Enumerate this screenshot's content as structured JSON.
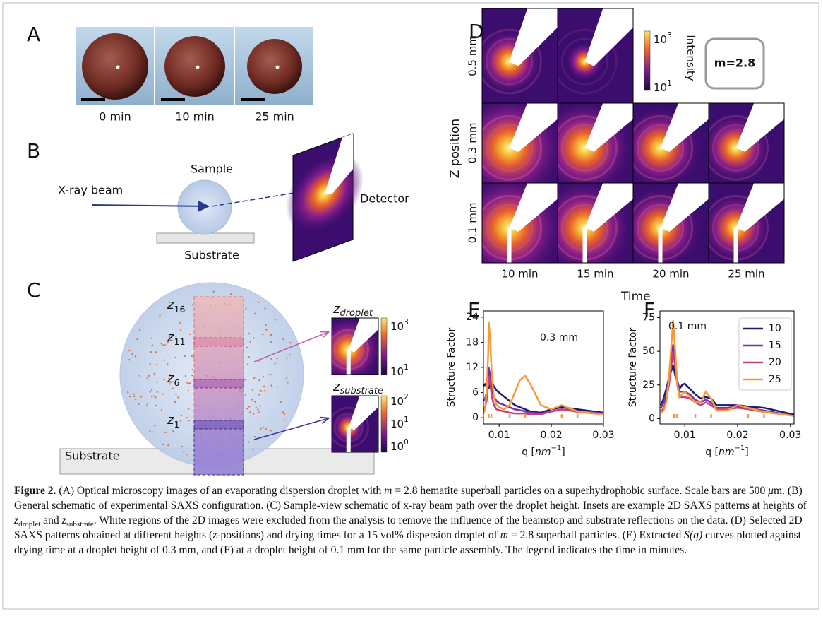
{
  "panel_labels": [
    "A",
    "B",
    "C",
    "D",
    "E",
    "F"
  ],
  "panel_a": {
    "captions": [
      "0 min",
      "10 min",
      "25 min"
    ]
  },
  "panel_b": {
    "sample": "Sample",
    "beam": "X-ray beam",
    "detector": "Detector",
    "substrate": "Substrate"
  },
  "panel_c": {
    "heights": [
      {
        "base": "z",
        "sub": "16"
      },
      {
        "base": "z",
        "sub": "11"
      },
      {
        "base": "z",
        "sub": "6"
      },
      {
        "base": "z",
        "sub": "1"
      }
    ],
    "substrate": "Substrate",
    "insets": [
      {
        "title": {
          "base": "z",
          "sub": "droplet"
        },
        "colorbar_ticks": [
          {
            "base": "10",
            "exp": "3"
          },
          {
            "base": "10",
            "exp": "1"
          }
        ]
      },
      {
        "title": {
          "base": "z",
          "sub": "substrate"
        },
        "colorbar_ticks": [
          {
            "base": "10",
            "exp": "2"
          },
          {
            "base": "10",
            "exp": "1"
          },
          {
            "base": "10",
            "exp": "0"
          }
        ]
      }
    ]
  },
  "panel_d": {
    "rows": [
      "0.5 mm",
      "0.3 mm",
      "0.1 mm"
    ],
    "columns": [
      "10 min",
      "15 min",
      "20 min",
      "25 min"
    ],
    "y_label": "Z position",
    "x_label": "Time",
    "colorbar_label": "Intensity",
    "colorbar_ticks": [
      {
        "base": "10",
        "exp": "3"
      },
      {
        "base": "10",
        "exp": "1"
      }
    ],
    "annotation": "m=2.8"
  },
  "chart_data": [
    {
      "type": "line",
      "ylabel": "Structure Factor",
      "xlabel_parts": [
        "q [",
        "nm",
        "−1",
        "]"
      ],
      "annotation": "0.3 mm",
      "xlim": [
        0.007,
        0.03
      ],
      "ylim": [
        -1.5,
        25.5
      ],
      "xticks": [
        0.01,
        0.02,
        0.03
      ],
      "yticks": [
        0,
        6,
        12,
        18,
        24
      ],
      "x": [
        0.007,
        0.0073,
        0.0076,
        0.0079,
        0.008,
        0.0083,
        0.0086,
        0.009,
        0.0095,
        0.01,
        0.011,
        0.012,
        0.013,
        0.014,
        0.015,
        0.016,
        0.018,
        0.02,
        0.022,
        0.025,
        0.03
      ],
      "series": [
        {
          "color": "#1b1b6f",
          "values": [
            7.5,
            8,
            7.5,
            7,
            7,
            8,
            8.5,
            7.5,
            6.5,
            6,
            5,
            4,
            3,
            2.5,
            2,
            1.5,
            1.2,
            2,
            2.5,
            2,
            1.2
          ]
        },
        {
          "color": "#7d2fa3",
          "values": [
            4,
            4.5,
            6,
            9,
            12,
            10,
            7,
            5,
            4,
            3.5,
            3,
            2.5,
            2,
            1.8,
            1.5,
            1.2,
            1,
            1.5,
            2,
            1.6,
            1
          ]
        },
        {
          "color": "#c2407a",
          "values": [
            2,
            2.5,
            4,
            8,
            10,
            8,
            5,
            3,
            2,
            1.8,
            1.5,
            1.2,
            1,
            1,
            1,
            0.8,
            0.8,
            1.5,
            2,
            1.4,
            0.8
          ]
        },
        {
          "color": "#f59a3a",
          "values": [
            1,
            2,
            6,
            15,
            23,
            18,
            10,
            5,
            3,
            2.5,
            2,
            3,
            6,
            9,
            10,
            8,
            3,
            2,
            3,
            1.5,
            0.8
          ]
        }
      ],
      "peak_markers": [
        0.008,
        0.0085,
        0.012,
        0.015,
        0.022,
        0.025
      ]
    },
    {
      "type": "line",
      "ylabel": "Structure Factor",
      "xlabel_parts": [
        "q [",
        "nm",
        "−1",
        "]"
      ],
      "annotation": "0.1 mm",
      "legend": "upper right",
      "xlim": [
        0.0053,
        0.0307
      ],
      "ylim": [
        -4,
        80
      ],
      "xticks": [
        0.01,
        0.02,
        0.03
      ],
      "yticks": [
        0,
        25,
        50,
        75
      ],
      "x": [
        0.0055,
        0.006,
        0.0065,
        0.007,
        0.0078,
        0.0082,
        0.0086,
        0.009,
        0.0095,
        0.01,
        0.011,
        0.012,
        0.013,
        0.014,
        0.015,
        0.016,
        0.018,
        0.02,
        0.022,
        0.025,
        0.0307
      ],
      "series": [
        {
          "name": "10",
          "color": "#1b1b6f",
          "values": [
            10,
            15,
            22,
            30,
            40,
            32,
            28,
            22,
            25,
            26,
            22,
            18,
            15,
            16,
            15,
            10,
            10,
            10,
            9,
            8,
            3
          ]
        },
        {
          "name": "15",
          "color": "#7d2fa3",
          "values": [
            8,
            12,
            18,
            30,
            55,
            40,
            28,
            20,
            20,
            20,
            18,
            14,
            12,
            14,
            12,
            8,
            8,
            9,
            8,
            6,
            2
          ]
        },
        {
          "name": "20",
          "color": "#c2407a",
          "values": [
            5,
            8,
            14,
            25,
            50,
            38,
            25,
            16,
            16,
            16,
            15,
            12,
            10,
            12,
            10,
            7,
            7,
            8,
            7,
            5,
            2
          ]
        },
        {
          "name": "25",
          "color": "#f59a3a",
          "values": [
            4,
            6,
            12,
            30,
            73,
            50,
            25,
            16,
            18,
            20,
            16,
            12,
            12,
            20,
            15,
            6,
            6,
            10,
            8,
            5,
            2
          ]
        }
      ],
      "peak_markers": [
        0.008,
        0.0085,
        0.012,
        0.015,
        0.022,
        0.025
      ]
    }
  ],
  "caption": {
    "segments": [
      {
        "text": "Figure 2.",
        "style": "bold"
      },
      {
        "text": " (A) Optical microscopy images of an evaporating dispersion droplet with "
      },
      {
        "text": "m",
        "style": "italic"
      },
      {
        "text": " = 2.8 hematite superball particles on a superhydrophobic surface. Scale bars are 500 "
      },
      {
        "text": "μ",
        "style": "italic"
      },
      {
        "text": "m. (B) General schematic of experimental SAXS configuration. (C) Sample-view schematic of x-ray beam path over the droplet height. Insets are example 2D SAXS patterns at heights of "
      },
      {
        "text": "z",
        "style": "italic"
      },
      {
        "text": "droplet",
        "style": "sub"
      },
      {
        "text": " and "
      },
      {
        "text": "z",
        "style": "italic"
      },
      {
        "text": "substrate",
        "style": "sub"
      },
      {
        "text": ". White regions of the 2D images were excluded from the analysis to remove the influence of the beamstop and substrate reflections on the data. (D) Selected 2D SAXS patterns obtained at different heights ("
      },
      {
        "text": "z",
        "style": "italic"
      },
      {
        "text": "-positions) and drying times for a 15 vol% dispersion droplet of "
      },
      {
        "text": "m",
        "style": "italic"
      },
      {
        "text": " = 2.8 superball particles. (E) Extracted "
      },
      {
        "text": "S(q)",
        "style": "italic"
      },
      {
        "text": " curves plotted against drying time at a droplet height of 0.3 mm, and (F) at a droplet height of 0.1 mm for the same particle assembly. The legend indicates the time in minutes."
      }
    ]
  }
}
